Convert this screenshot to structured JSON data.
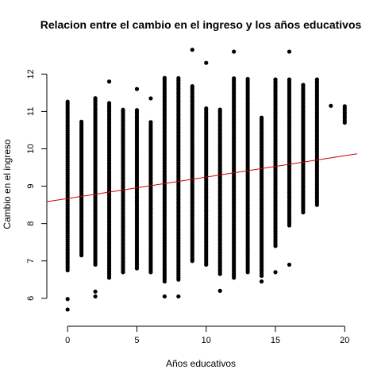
{
  "chart_data": {
    "type": "scatter",
    "title": "Relacion entre el cambio en el ingreso y los años educativos",
    "xlabel": "Años educativos",
    "ylabel": "Cambio en el ingreso",
    "xlim": [
      -1.5,
      20.9
    ],
    "ylim": [
      5.55,
      12.75
    ],
    "x_ticks": [
      0,
      5,
      10,
      15,
      20
    ],
    "y_ticks": [
      6,
      7,
      8,
      9,
      10,
      11,
      12
    ],
    "grid": false,
    "legend": "none",
    "point_color": "#000000",
    "regression_line": {
      "color": "#cc0000",
      "intercept": 8.67,
      "slope": 0.0573
    },
    "columns": [
      {
        "x": 0,
        "min": 6.75,
        "max": 11.3,
        "outliers": [
          5.98,
          5.7
        ]
      },
      {
        "x": 1,
        "min": 7.15,
        "max": 10.75,
        "outliers": []
      },
      {
        "x": 2,
        "min": 6.9,
        "max": 11.4,
        "outliers": [
          6.18,
          6.05
        ]
      },
      {
        "x": 3,
        "min": 6.55,
        "max": 11.25,
        "outliers": [
          11.8
        ]
      },
      {
        "x": 4,
        "min": 6.7,
        "max": 11.05,
        "outliers": []
      },
      {
        "x": 5,
        "min": 6.8,
        "max": 11.05,
        "outliers": [
          11.6
        ]
      },
      {
        "x": 6,
        "min": 6.7,
        "max": 10.75,
        "outliers": [
          11.35
        ]
      },
      {
        "x": 7,
        "min": 6.45,
        "max": 11.9,
        "outliers": [
          6.05
        ]
      },
      {
        "x": 8,
        "min": 6.5,
        "max": 11.9,
        "outliers": [
          6.05
        ]
      },
      {
        "x": 9,
        "min": 7.0,
        "max": 11.7,
        "outliers": [
          12.65
        ]
      },
      {
        "x": 10,
        "min": 6.9,
        "max": 11.1,
        "outliers": [
          12.3
        ]
      },
      {
        "x": 11,
        "min": 6.65,
        "max": 11.1,
        "outliers": [
          6.2
        ]
      },
      {
        "x": 12,
        "min": 6.55,
        "max": 11.9,
        "outliers": [
          12.6
        ]
      },
      {
        "x": 13,
        "min": 6.7,
        "max": 11.9,
        "outliers": [
          7.3
        ]
      },
      {
        "x": 14,
        "min": 6.6,
        "max": 10.85,
        "outliers": [
          6.45
        ]
      },
      {
        "x": 15,
        "min": 7.4,
        "max": 11.9,
        "outliers": [
          6.7
        ]
      },
      {
        "x": 16,
        "min": 7.95,
        "max": 11.9,
        "outliers": [
          12.6,
          6.9
        ]
      },
      {
        "x": 17,
        "min": 8.3,
        "max": 11.75,
        "outliers": []
      },
      {
        "x": 18,
        "min": 8.5,
        "max": 11.9,
        "outliers": []
      },
      {
        "x": 19,
        "min": 11.15,
        "max": 11.15,
        "outliers": []
      },
      {
        "x": 20,
        "min": 10.7,
        "max": 11.15,
        "outliers": []
      }
    ]
  }
}
